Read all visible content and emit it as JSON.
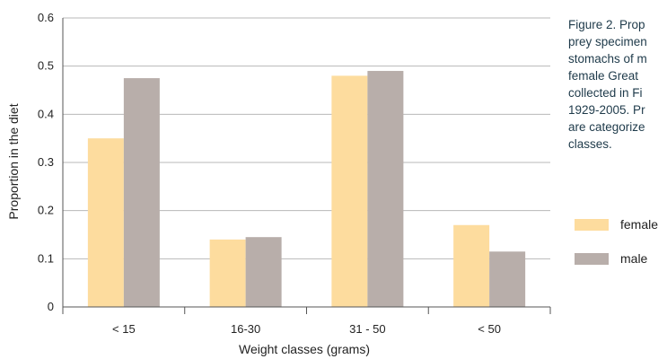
{
  "chart_data": {
    "type": "bar",
    "title": "",
    "xlabel": "Weight classes (grams)",
    "ylabel": "Proportion in the diet",
    "categories": [
      "< 15",
      "16-30",
      "31 - 50",
      "< 50"
    ],
    "series": [
      {
        "name": "female",
        "values": [
          0.35,
          0.14,
          0.48,
          0.17
        ],
        "color": "#fddc9e"
      },
      {
        "name": "male",
        "values": [
          0.475,
          0.145,
          0.49,
          0.115
        ],
        "color": "#b8aeaa"
      }
    ],
    "ylim": [
      0,
      0.6
    ],
    "yticks": [
      "0",
      "0.1",
      "0.2",
      "0.3",
      "0.4",
      "0.5",
      "0.6"
    ],
    "grid": true,
    "legend_position": "right"
  },
  "caption_lines": [
    "Figure 2. Prop",
    "prey specimen",
    "stomachs of m",
    "female Great",
    "collected in Fi",
    "1929-2005. Pr",
    "are categorize",
    "classes."
  ],
  "colors": {
    "grid": "#b8b8b8",
    "axis": "#555555",
    "caption": "#1e3a4a"
  }
}
